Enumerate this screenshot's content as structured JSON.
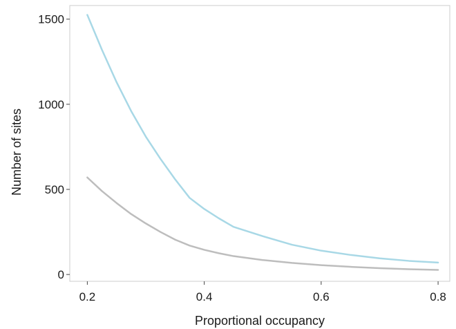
{
  "chart_data": {
    "type": "line",
    "title": "",
    "xlabel": "Proportional occupancy",
    "ylabel": "Number of sites",
    "xlim": [
      0.17,
      0.82
    ],
    "ylim": [
      -40,
      1580
    ],
    "x_ticks": [
      0.2,
      0.4,
      0.6,
      0.8
    ],
    "x_tick_labels": [
      "0.2",
      "0.4",
      "0.6",
      "0.8"
    ],
    "y_ticks": [
      0,
      500,
      1000,
      1500
    ],
    "y_tick_labels": [
      "0",
      "500",
      "1000",
      "1500"
    ],
    "grid": false,
    "series": [
      {
        "color": "#a8d8e6",
        "x": [
          0.2,
          0.225,
          0.25,
          0.275,
          0.3,
          0.325,
          0.35,
          0.375,
          0.4,
          0.425,
          0.45,
          0.5,
          0.55,
          0.6,
          0.65,
          0.7,
          0.75,
          0.8
        ],
        "y": [
          1525,
          1320,
          1130,
          960,
          810,
          680,
          560,
          450,
          385,
          330,
          280,
          225,
          175,
          140,
          115,
          95,
          80,
          70
        ]
      },
      {
        "color": "#bdbdbd",
        "x": [
          0.2,
          0.225,
          0.25,
          0.275,
          0.3,
          0.325,
          0.35,
          0.375,
          0.4,
          0.425,
          0.45,
          0.5,
          0.55,
          0.6,
          0.65,
          0.7,
          0.75,
          0.8
        ],
        "y": [
          570,
          490,
          420,
          355,
          300,
          250,
          205,
          170,
          145,
          125,
          108,
          85,
          68,
          55,
          45,
          37,
          31,
          27
        ]
      }
    ]
  }
}
